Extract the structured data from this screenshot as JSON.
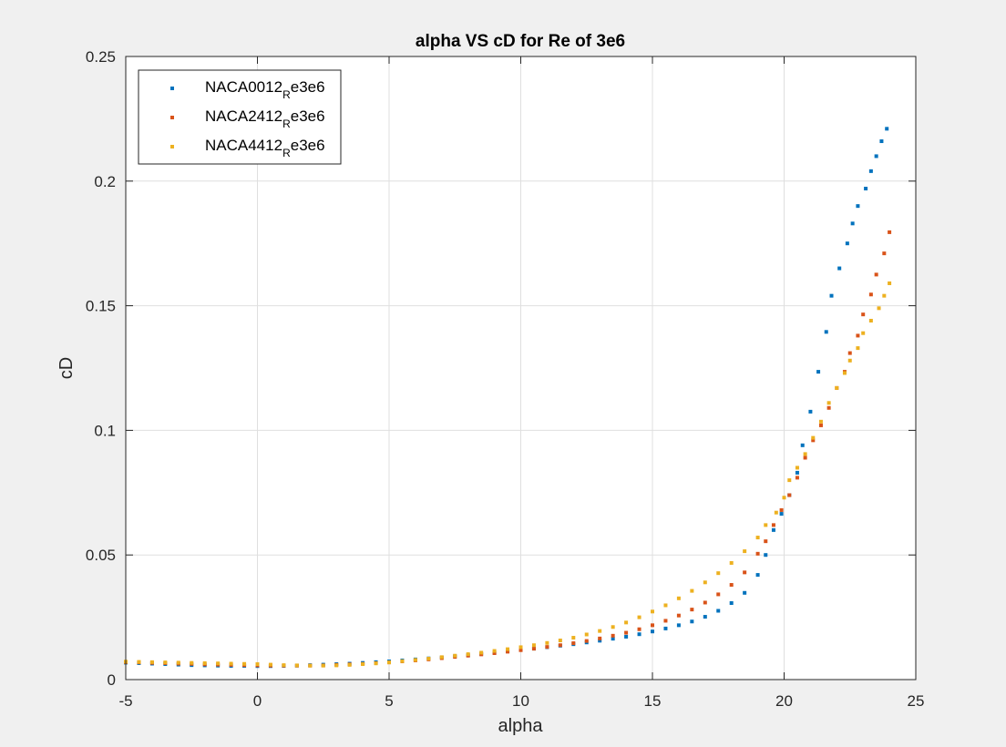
{
  "chart_data": {
    "type": "scatter",
    "title": "alpha VS cD for Re of 3e6",
    "xlabel": "alpha",
    "ylabel": "cD",
    "xlim": [
      -5,
      25
    ],
    "ylim": [
      0,
      0.25
    ],
    "x_ticks": [
      "-5",
      "0",
      "5",
      "10",
      "15",
      "20",
      "25"
    ],
    "y_ticks": [
      "0",
      "0.05",
      "0.1",
      "0.15",
      "0.2",
      "0.25"
    ],
    "grid": true,
    "legend_position": "top-left",
    "series": [
      {
        "name": "NACA0012_Re3e6",
        "legend_main": "NACA0012",
        "legend_sub": "R",
        "legend_tail": "e3e6",
        "color": "#0072BD",
        "points": [
          [
            -5,
            0.0068
          ],
          [
            -4.5,
            0.0066
          ],
          [
            -4,
            0.0064
          ],
          [
            -3.5,
            0.0062
          ],
          [
            -3,
            0.006
          ],
          [
            -2.5,
            0.0058
          ],
          [
            -2,
            0.0057
          ],
          [
            -1.5,
            0.0056
          ],
          [
            -1,
            0.0055
          ],
          [
            -0.5,
            0.0055
          ],
          [
            0,
            0.0054
          ],
          [
            0.5,
            0.0054
          ],
          [
            1,
            0.0055
          ],
          [
            1.5,
            0.0056
          ],
          [
            2,
            0.0058
          ],
          [
            2.5,
            0.006
          ],
          [
            3,
            0.0062
          ],
          [
            3.5,
            0.0064
          ],
          [
            4,
            0.0067
          ],
          [
            4.5,
            0.007
          ],
          [
            5,
            0.0073
          ],
          [
            5.5,
            0.0077
          ],
          [
            6,
            0.0081
          ],
          [
            6.5,
            0.0085
          ],
          [
            7,
            0.0089
          ],
          [
            7.5,
            0.0094
          ],
          [
            8,
            0.0098
          ],
          [
            8.5,
            0.0103
          ],
          [
            9,
            0.0108
          ],
          [
            9.5,
            0.0113
          ],
          [
            10,
            0.0119
          ],
          [
            10.5,
            0.0124
          ],
          [
            11,
            0.013
          ],
          [
            11.5,
            0.0136
          ],
          [
            12,
            0.0142
          ],
          [
            12.5,
            0.0149
          ],
          [
            13,
            0.0156
          ],
          [
            13.5,
            0.0164
          ],
          [
            14,
            0.0172
          ],
          [
            14.5,
            0.0182
          ],
          [
            15,
            0.0193
          ],
          [
            15.5,
            0.0205
          ],
          [
            16,
            0.0218
          ],
          [
            16.5,
            0.0233
          ],
          [
            17,
            0.0252
          ],
          [
            17.5,
            0.0276
          ],
          [
            18,
            0.0307
          ],
          [
            18.5,
            0.0348
          ],
          [
            19,
            0.042
          ],
          [
            19.3,
            0.05
          ],
          [
            19.6,
            0.06
          ],
          [
            19.9,
            0.0665
          ],
          [
            20.2,
            0.074
          ],
          [
            20.5,
            0.083
          ],
          [
            20.7,
            0.094
          ],
          [
            21,
            0.1075
          ],
          [
            21.3,
            0.1235
          ],
          [
            21.6,
            0.1395
          ],
          [
            21.8,
            0.154
          ],
          [
            22.1,
            0.165
          ],
          [
            22.4,
            0.175
          ],
          [
            22.6,
            0.183
          ],
          [
            22.8,
            0.19
          ],
          [
            23.1,
            0.197
          ],
          [
            23.3,
            0.204
          ],
          [
            23.5,
            0.21
          ],
          [
            23.7,
            0.216
          ],
          [
            23.9,
            0.221
          ]
        ]
      },
      {
        "name": "NACA2412_Re3e6",
        "legend_main": "NACA2412",
        "legend_sub": "R",
        "legend_tail": "e3e6",
        "color": "#D95319",
        "points": [
          [
            -5,
            0.007
          ],
          [
            -4.5,
            0.0069
          ],
          [
            -4,
            0.0067
          ],
          [
            -3.5,
            0.0066
          ],
          [
            -3,
            0.0064
          ],
          [
            -2.5,
            0.0063
          ],
          [
            -2,
            0.0061
          ],
          [
            -1.5,
            0.006
          ],
          [
            -1,
            0.0059
          ],
          [
            -0.5,
            0.0058
          ],
          [
            0,
            0.0057
          ],
          [
            0.5,
            0.0056
          ],
          [
            1,
            0.0056
          ],
          [
            1.5,
            0.0056
          ],
          [
            2,
            0.0056
          ],
          [
            2.5,
            0.0057
          ],
          [
            3,
            0.0059
          ],
          [
            3.5,
            0.0061
          ],
          [
            4,
            0.0063
          ],
          [
            4.5,
            0.0066
          ],
          [
            5,
            0.0069
          ],
          [
            5.5,
            0.0073
          ],
          [
            6,
            0.0077
          ],
          [
            6.5,
            0.0081
          ],
          [
            7,
            0.0086
          ],
          [
            7.5,
            0.0091
          ],
          [
            8,
            0.0096
          ],
          [
            8.5,
            0.0101
          ],
          [
            9,
            0.0106
          ],
          [
            9.5,
            0.0112
          ],
          [
            10,
            0.0118
          ],
          [
            10.5,
            0.0124
          ],
          [
            11,
            0.0131
          ],
          [
            11.5,
            0.0138
          ],
          [
            12,
            0.0146
          ],
          [
            12.5,
            0.0155
          ],
          [
            13,
            0.0165
          ],
          [
            13.5,
            0.0176
          ],
          [
            14,
            0.0188
          ],
          [
            14.5,
            0.0202
          ],
          [
            15,
            0.0218
          ],
          [
            15.5,
            0.0236
          ],
          [
            16,
            0.0257
          ],
          [
            16.5,
            0.0281
          ],
          [
            17,
            0.0309
          ],
          [
            17.5,
            0.0342
          ],
          [
            18,
            0.038
          ],
          [
            18.5,
            0.043
          ],
          [
            19,
            0.0505
          ],
          [
            19.3,
            0.0555
          ],
          [
            19.6,
            0.062
          ],
          [
            19.9,
            0.068
          ],
          [
            20.2,
            0.074
          ],
          [
            20.5,
            0.081
          ],
          [
            20.8,
            0.089
          ],
          [
            21.1,
            0.096
          ],
          [
            21.4,
            0.102
          ],
          [
            21.7,
            0.109
          ],
          [
            22,
            0.117
          ],
          [
            22.3,
            0.1235
          ],
          [
            22.5,
            0.131
          ],
          [
            22.8,
            0.138
          ],
          [
            23,
            0.1465
          ],
          [
            23.3,
            0.1545
          ],
          [
            23.5,
            0.1625
          ],
          [
            23.8,
            0.171
          ],
          [
            24,
            0.1795
          ]
        ]
      },
      {
        "name": "NACA4412_Re3e6",
        "legend_main": "NACA4412",
        "legend_sub": "R",
        "legend_tail": "e3e6",
        "color": "#EDB120",
        "points": [
          [
            -5,
            0.0072
          ],
          [
            -4.5,
            0.0071
          ],
          [
            -4,
            0.007
          ],
          [
            -3.5,
            0.0069
          ],
          [
            -3,
            0.0068
          ],
          [
            -2.5,
            0.0067
          ],
          [
            -2,
            0.0066
          ],
          [
            -1.5,
            0.0065
          ],
          [
            -1,
            0.0064
          ],
          [
            -0.5,
            0.0063
          ],
          [
            0,
            0.0062
          ],
          [
            0.5,
            0.006
          ],
          [
            1,
            0.0058
          ],
          [
            1.5,
            0.0057
          ],
          [
            2,
            0.0056
          ],
          [
            2.5,
            0.0056
          ],
          [
            3,
            0.0057
          ],
          [
            3.5,
            0.0059
          ],
          [
            4,
            0.0062
          ],
          [
            4.5,
            0.0065
          ],
          [
            5,
            0.0069
          ],
          [
            5.5,
            0.0074
          ],
          [
            6,
            0.0079
          ],
          [
            6.5,
            0.0084
          ],
          [
            7,
            0.009
          ],
          [
            7.5,
            0.0096
          ],
          [
            8,
            0.0102
          ],
          [
            8.5,
            0.0108
          ],
          [
            9,
            0.0115
          ],
          [
            9.5,
            0.0122
          ],
          [
            10,
            0.013
          ],
          [
            10.5,
            0.0138
          ],
          [
            11,
            0.0147
          ],
          [
            11.5,
            0.0157
          ],
          [
            12,
            0.0168
          ],
          [
            12.5,
            0.0181
          ],
          [
            13,
            0.0195
          ],
          [
            13.5,
            0.0211
          ],
          [
            14,
            0.0229
          ],
          [
            14.5,
            0.025
          ],
          [
            15,
            0.0273
          ],
          [
            15.5,
            0.0298
          ],
          [
            16,
            0.0326
          ],
          [
            16.5,
            0.0356
          ],
          [
            17,
            0.039
          ],
          [
            17.5,
            0.0427
          ],
          [
            18,
            0.0468
          ],
          [
            18.5,
            0.0515
          ],
          [
            19,
            0.057
          ],
          [
            19.3,
            0.062
          ],
          [
            19.7,
            0.067
          ],
          [
            20,
            0.073
          ],
          [
            20.2,
            0.08
          ],
          [
            20.5,
            0.085
          ],
          [
            20.8,
            0.0905
          ],
          [
            21.1,
            0.097
          ],
          [
            21.4,
            0.1035
          ],
          [
            21.7,
            0.111
          ],
          [
            22,
            0.117
          ],
          [
            22.3,
            0.123
          ],
          [
            22.5,
            0.128
          ],
          [
            22.8,
            0.133
          ],
          [
            23,
            0.139
          ],
          [
            23.3,
            0.144
          ],
          [
            23.6,
            0.149
          ],
          [
            23.8,
            0.154
          ],
          [
            24,
            0.159
          ]
        ]
      }
    ]
  }
}
